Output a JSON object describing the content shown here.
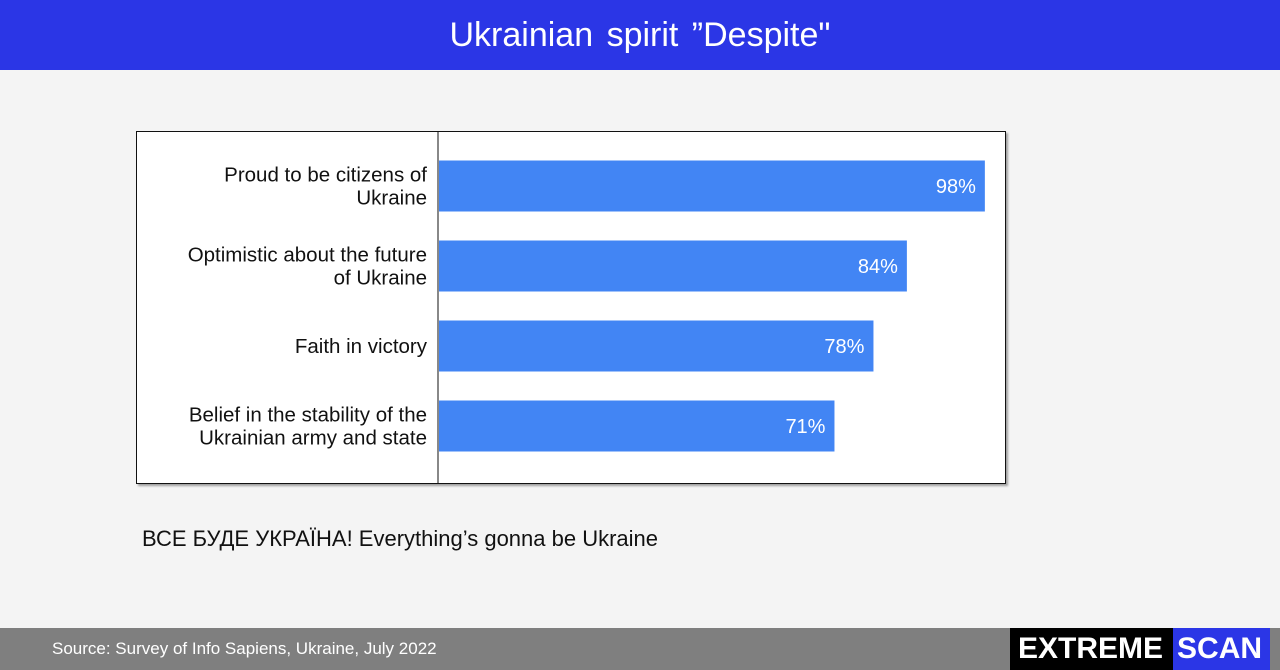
{
  "header": {
    "title": "Ukrainian spirit ”Despite\""
  },
  "chart_data": {
    "type": "bar",
    "orientation": "horizontal",
    "categories": [
      [
        "Proud to be citizens of",
        "Ukraine"
      ],
      [
        "Optimistic about the future",
        "of Ukraine"
      ],
      [
        "Faith in victory"
      ],
      [
        "Belief in the stability of  the",
        "Ukrainian army and state"
      ]
    ],
    "values": [
      98,
      84,
      78,
      71
    ],
    "value_labels": [
      "98%",
      "84%",
      "78%",
      "71%"
    ],
    "xlim": [
      0,
      100
    ],
    "bar_color": "#4285f4",
    "grid": false,
    "legend": "none"
  },
  "tagline": "ВСЕ БУДЕ УКРАЇНА! Everything’s gonna be Ukraine",
  "footer": {
    "source": "Source: Survey of Info Sapiens, Ukraine, July 2022"
  },
  "brand": {
    "part1": "EXTREME",
    "part2": "SCAN"
  },
  "colors": {
    "header_bg": "#2b36e6",
    "footer_bg": "#7f7f7f",
    "bar": "#4285f4"
  }
}
